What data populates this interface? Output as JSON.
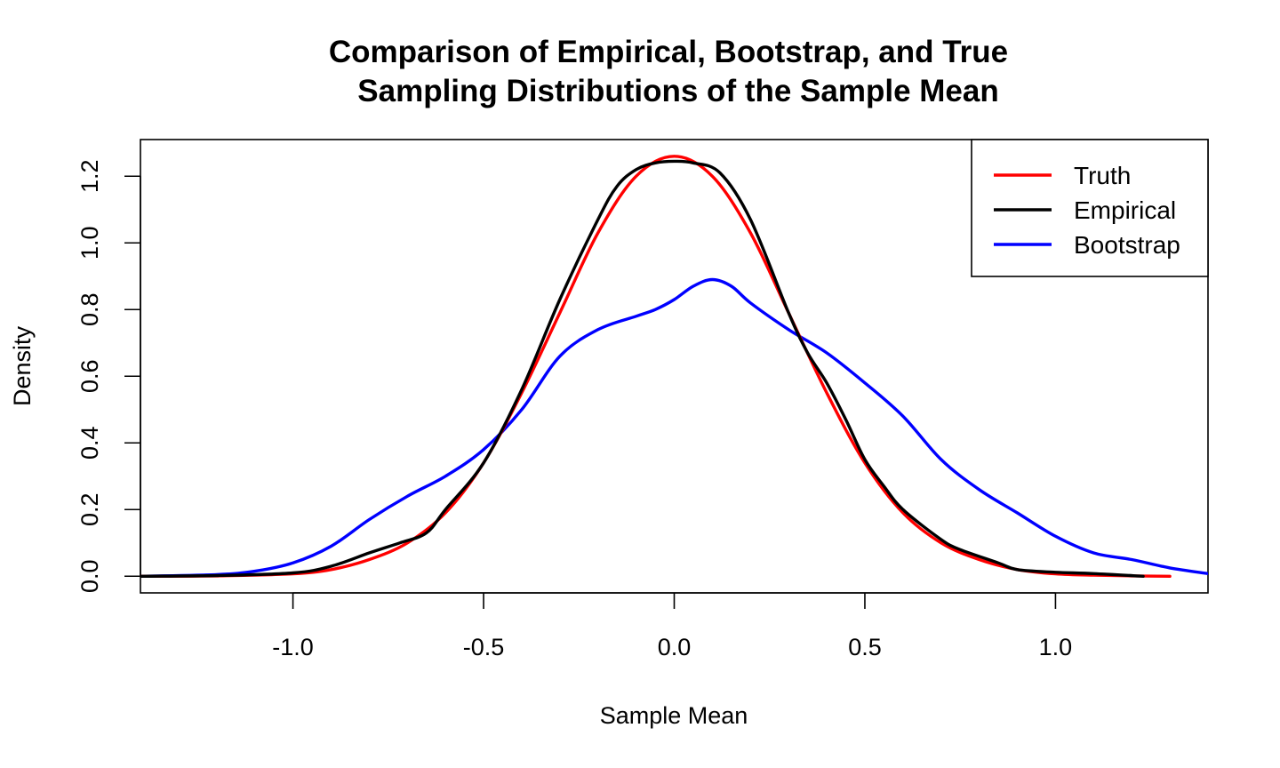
{
  "chart_data": {
    "type": "line",
    "title_line1": "Comparison of Empirical, Bootstrap, and True",
    "title_line2": "Sampling Distributions of the Sample Mean",
    "xlabel": "Sample Mean",
    "ylabel": "Density",
    "xlim": [
      -1.4,
      1.4
    ],
    "ylim": [
      -0.05,
      1.31
    ],
    "x_ticks": [
      -1.0,
      -0.5,
      0.0,
      0.5,
      1.0
    ],
    "x_tick_labels": [
      "-1.0",
      "-0.5",
      "0.0",
      "0.5",
      "1.0"
    ],
    "y_ticks": [
      0.0,
      0.2,
      0.4,
      0.6,
      0.8,
      1.0,
      1.2
    ],
    "y_tick_labels": [
      "0.0",
      "0.2",
      "0.4",
      "0.6",
      "0.8",
      "1.0",
      "1.2"
    ],
    "grid": false,
    "legend_position": "top-right",
    "series": [
      {
        "name": "Truth",
        "color": "#ff0000",
        "points": [
          [
            -1.4,
            0.0
          ],
          [
            -1.2,
            0.001
          ],
          [
            -1.0,
            0.007
          ],
          [
            -0.9,
            0.02
          ],
          [
            -0.8,
            0.05
          ],
          [
            -0.7,
            0.1
          ],
          [
            -0.6,
            0.19
          ],
          [
            -0.5,
            0.34
          ],
          [
            -0.4,
            0.55
          ],
          [
            -0.3,
            0.79
          ],
          [
            -0.2,
            1.03
          ],
          [
            -0.1,
            1.2
          ],
          [
            0.0,
            1.26
          ],
          [
            0.1,
            1.2
          ],
          [
            0.2,
            1.03
          ],
          [
            0.3,
            0.79
          ],
          [
            0.4,
            0.55
          ],
          [
            0.5,
            0.34
          ],
          [
            0.6,
            0.19
          ],
          [
            0.7,
            0.1
          ],
          [
            0.8,
            0.05
          ],
          [
            0.9,
            0.02
          ],
          [
            1.0,
            0.007
          ],
          [
            1.1,
            0.003
          ],
          [
            1.2,
            0.001
          ],
          [
            1.3,
            0.0
          ]
        ]
      },
      {
        "name": "Empirical",
        "color": "#000000",
        "points": [
          [
            -1.4,
            0.0
          ],
          [
            -1.2,
            0.002
          ],
          [
            -1.0,
            0.01
          ],
          [
            -0.9,
            0.03
          ],
          [
            -0.8,
            0.07
          ],
          [
            -0.72,
            0.1
          ],
          [
            -0.65,
            0.13
          ],
          [
            -0.6,
            0.2
          ],
          [
            -0.5,
            0.34
          ],
          [
            -0.4,
            0.56
          ],
          [
            -0.3,
            0.83
          ],
          [
            -0.2,
            1.07
          ],
          [
            -0.15,
            1.17
          ],
          [
            -0.1,
            1.22
          ],
          [
            -0.05,
            1.24
          ],
          [
            0.0,
            1.245
          ],
          [
            0.05,
            1.24
          ],
          [
            0.12,
            1.21
          ],
          [
            0.2,
            1.07
          ],
          [
            0.3,
            0.79
          ],
          [
            0.35,
            0.67
          ],
          [
            0.4,
            0.58
          ],
          [
            0.45,
            0.47
          ],
          [
            0.5,
            0.35
          ],
          [
            0.55,
            0.27
          ],
          [
            0.6,
            0.2
          ],
          [
            0.7,
            0.11
          ],
          [
            0.75,
            0.08
          ],
          [
            0.85,
            0.04
          ],
          [
            0.9,
            0.02
          ],
          [
            1.0,
            0.012
          ],
          [
            1.1,
            0.008
          ],
          [
            1.23,
            0.0
          ]
        ]
      },
      {
        "name": "Bootstrap",
        "color": "#0000ff",
        "points": [
          [
            -1.4,
            0.0
          ],
          [
            -1.2,
            0.005
          ],
          [
            -1.1,
            0.015
          ],
          [
            -1.0,
            0.04
          ],
          [
            -0.9,
            0.09
          ],
          [
            -0.8,
            0.17
          ],
          [
            -0.7,
            0.24
          ],
          [
            -0.6,
            0.3
          ],
          [
            -0.5,
            0.38
          ],
          [
            -0.4,
            0.5
          ],
          [
            -0.3,
            0.66
          ],
          [
            -0.2,
            0.74
          ],
          [
            -0.1,
            0.78
          ],
          [
            -0.05,
            0.8
          ],
          [
            0.0,
            0.83
          ],
          [
            0.05,
            0.87
          ],
          [
            0.1,
            0.89
          ],
          [
            0.15,
            0.87
          ],
          [
            0.2,
            0.82
          ],
          [
            0.3,
            0.74
          ],
          [
            0.4,
            0.67
          ],
          [
            0.5,
            0.58
          ],
          [
            0.6,
            0.48
          ],
          [
            0.7,
            0.35
          ],
          [
            0.8,
            0.26
          ],
          [
            0.9,
            0.19
          ],
          [
            1.0,
            0.12
          ],
          [
            1.1,
            0.07
          ],
          [
            1.2,
            0.05
          ],
          [
            1.3,
            0.025
          ],
          [
            1.4,
            0.008
          ]
        ]
      }
    ]
  }
}
